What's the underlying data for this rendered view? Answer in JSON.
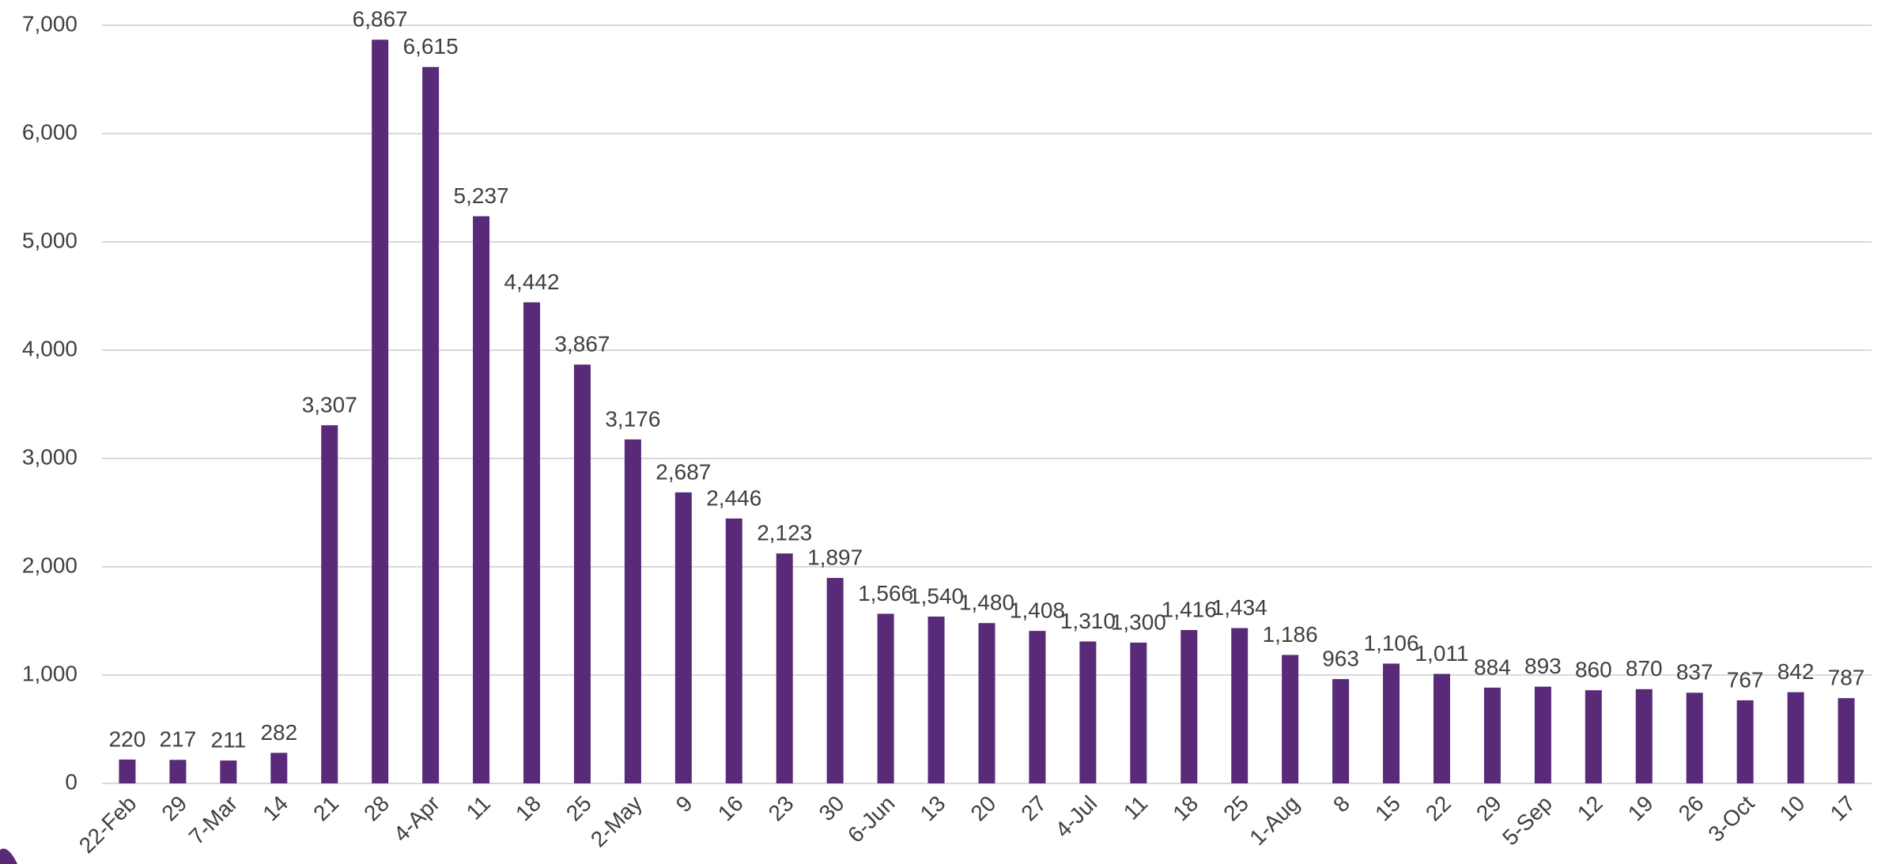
{
  "chart_data": {
    "type": "bar",
    "categories": [
      "22-Feb",
      "29",
      "7-Mar",
      "14",
      "21",
      "28",
      "4-Apr",
      "11",
      "18",
      "25",
      "2-May",
      "9",
      "16",
      "23",
      "30",
      "6-Jun",
      "13",
      "20",
      "27",
      "4-Jul",
      "11",
      "18",
      "25",
      "1-Aug",
      "8",
      "15",
      "22",
      "29",
      "5-Sep",
      "12",
      "19",
      "26",
      "3-Oct",
      "10",
      "17"
    ],
    "values": [
      220,
      217,
      211,
      282,
      3307,
      6867,
      6615,
      5237,
      4442,
      3867,
      3176,
      2687,
      2446,
      2123,
      1897,
      1566,
      1540,
      1480,
      1408,
      1310,
      1300,
      1416,
      1434,
      1186,
      963,
      1106,
      1011,
      884,
      893,
      860,
      870,
      837,
      767,
      842,
      787
    ],
    "value_labels": [
      "220",
      "217",
      "211",
      "282",
      "3,307",
      "6,867",
      "6,615",
      "5,237",
      "4,442",
      "3,867",
      "3,176",
      "2,687",
      "2,446",
      "2,123",
      "1,897",
      "1,566",
      "1,540",
      "1,480",
      "1,408",
      "1,310",
      "1,300",
      "1,416",
      "1,434",
      "1,186",
      "963",
      "1,106",
      "1,011",
      "884",
      "893",
      "860",
      "870",
      "837",
      "767",
      "842",
      "787"
    ],
    "color": "#582a78",
    "ylim": [
      0,
      7000
    ],
    "yticks": [
      0,
      {
        "value": 1000,
        "label": "1,000"
      },
      {
        "value": 2000,
        "label": "2,000"
      },
      {
        "value": 3000,
        "label": "3,000"
      },
      {
        "value": 4000,
        "label": "4,000"
      },
      {
        "value": 5000,
        "label": "5,000"
      },
      {
        "value": 6000,
        "label": "6,000"
      },
      {
        "value": 7000,
        "label": "7,000"
      }
    ],
    "grid": true
  }
}
